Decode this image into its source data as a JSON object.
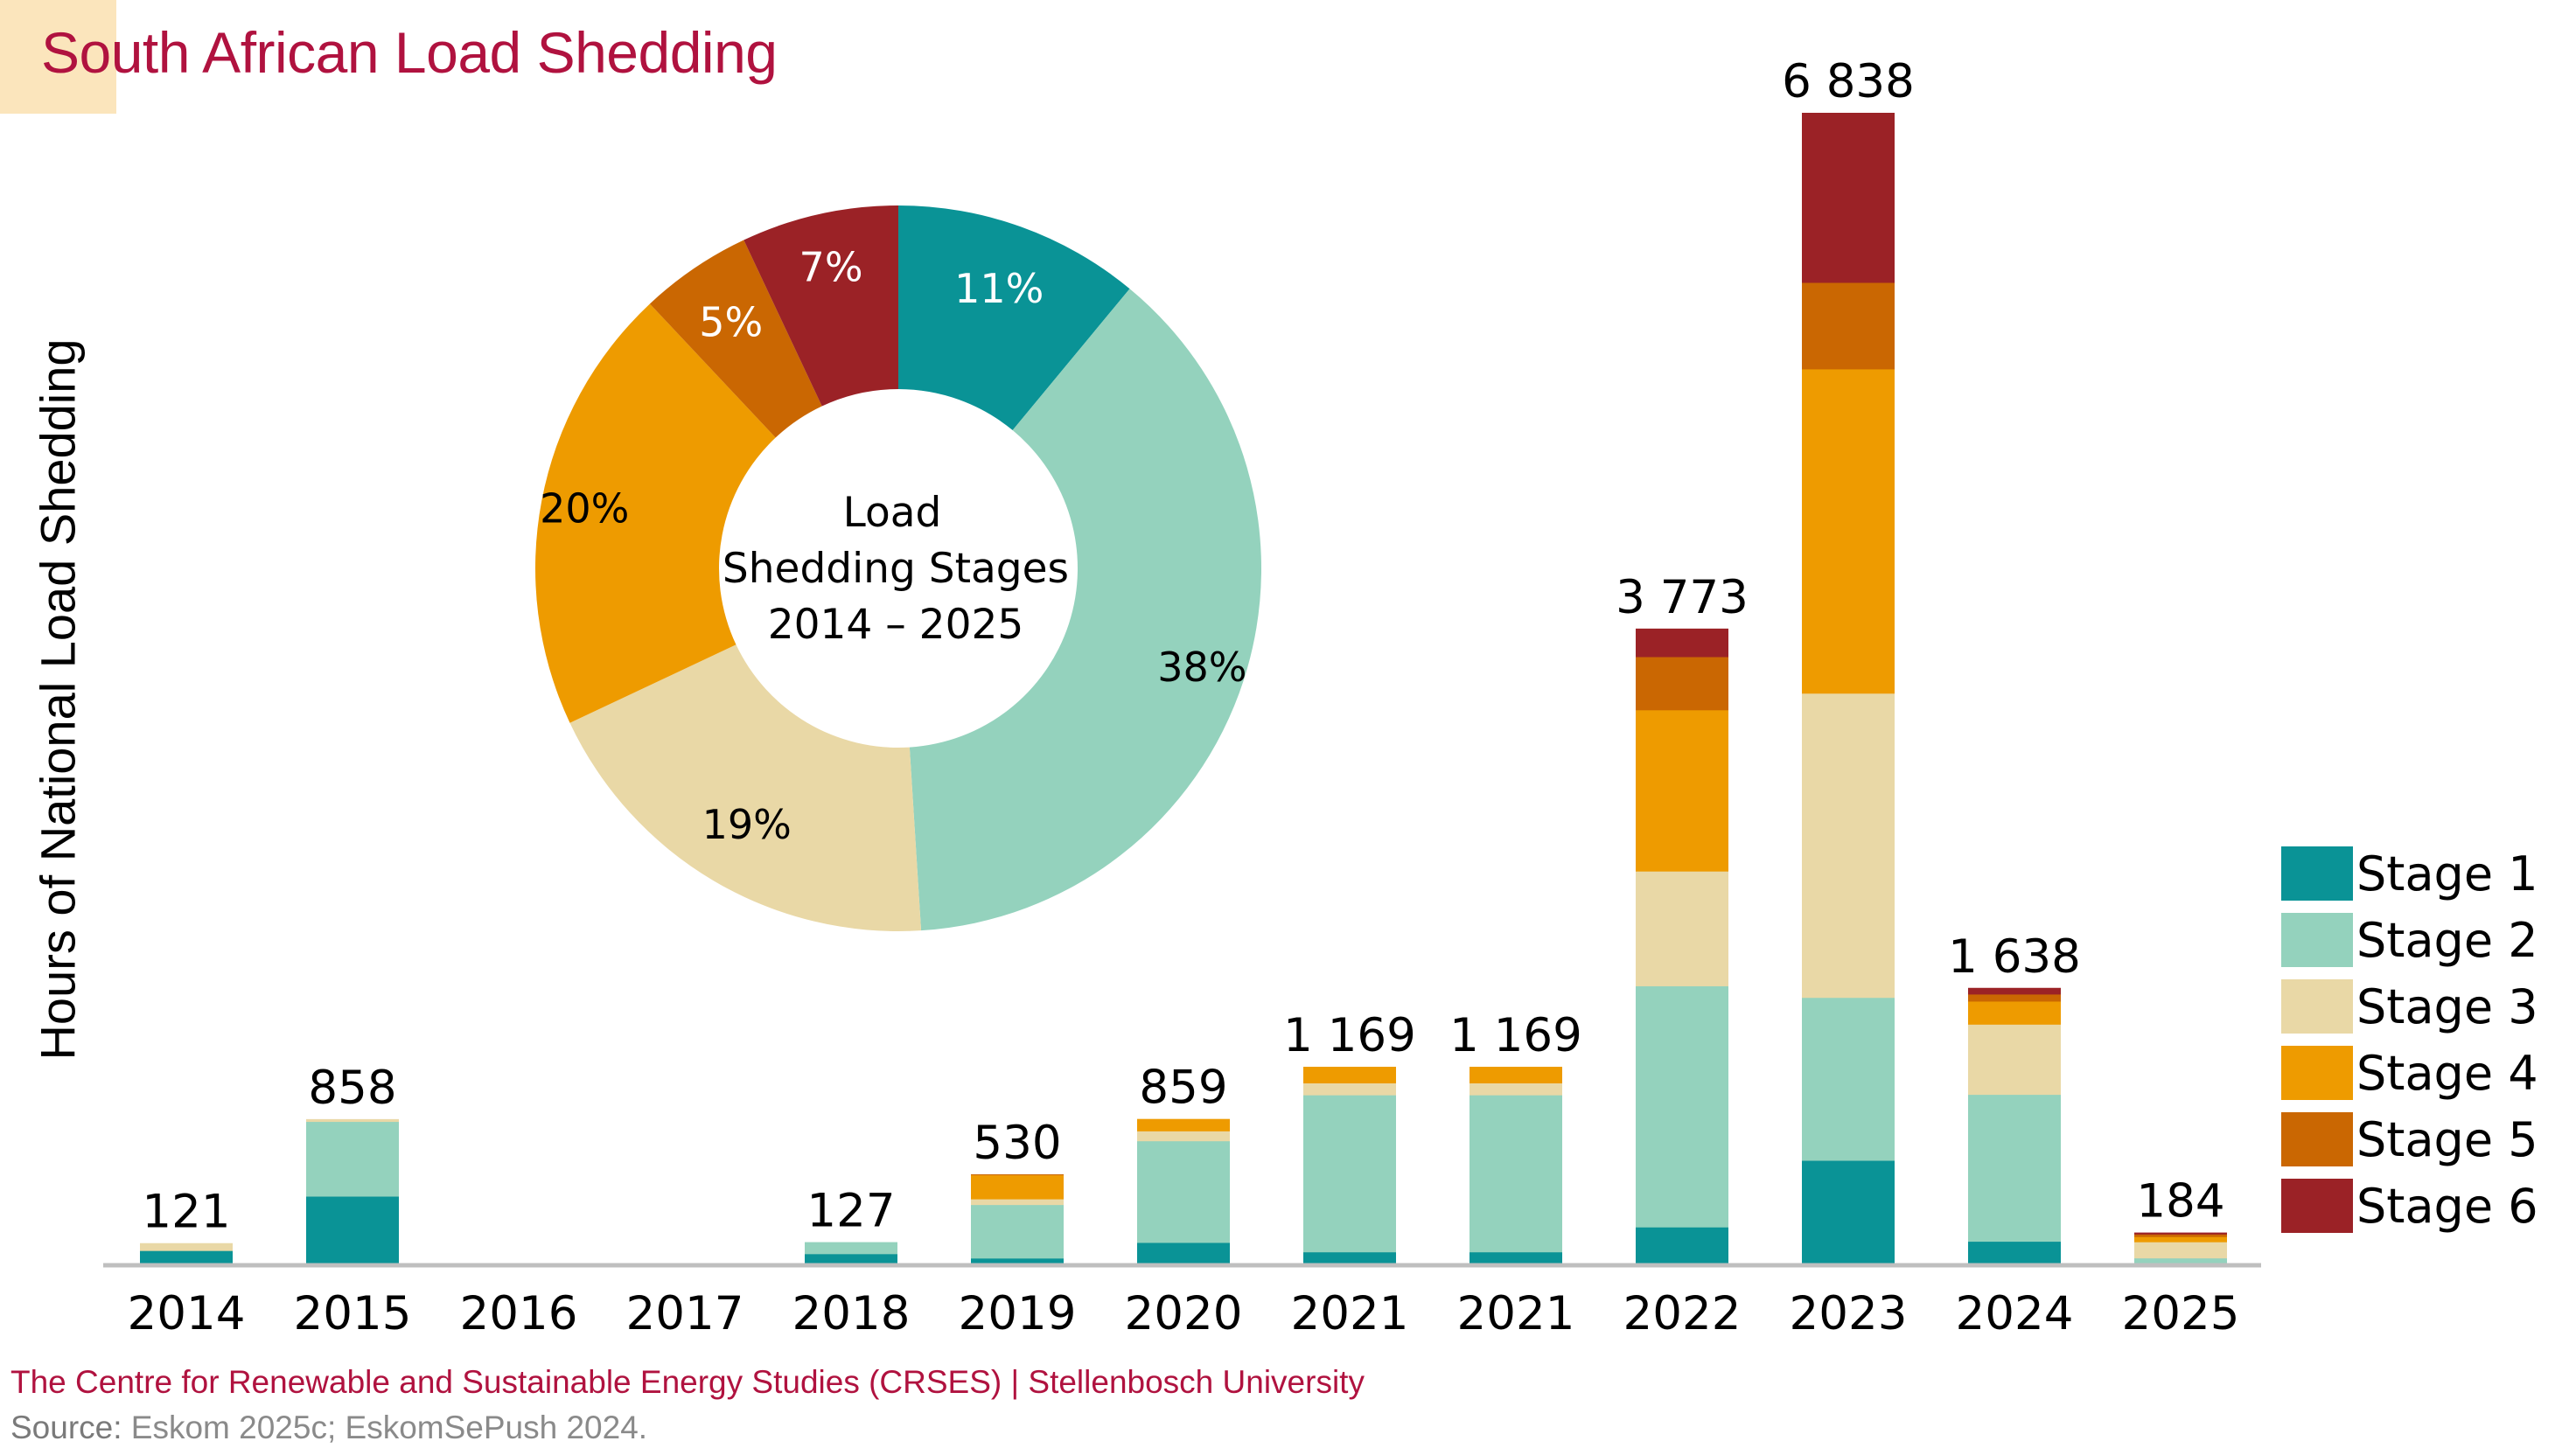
{
  "title": "South African Load Shedding",
  "footer": {
    "organisation": "The Centre for Renewable and Sustainable Energy Studies (CRSES) | Stellenbosch University",
    "source_label": "Source:",
    "source_text": " Eskom 2025c; EskomSePush 2024."
  },
  "colors": {
    "Stage 1": "#0A9396",
    "Stage 2": "#94D2BD",
    "Stage 3": "#E9D8A6",
    "Stage 4": "#EE9B00",
    "Stage 5": "#CA6702",
    "Stage 6": "#9B2226",
    "title": "#B0123F",
    "axis": "#BFBFBF"
  },
  "chart_data": [
    {
      "type": "bar",
      "stacked": true,
      "title": "South African Load Shedding",
      "xlabel": "",
      "ylabel": "Hours of National Load Shedding",
      "ylim": [
        0,
        6838
      ],
      "grid": false,
      "legend_position": "right",
      "categories": [
        "2014",
        "2015",
        "2016",
        "2017",
        "2018",
        "2019",
        "2020",
        "2021",
        "2021",
        "2022",
        "2023",
        "2024",
        "2025"
      ],
      "totals": [
        121,
        858,
        0,
        0,
        127,
        530,
        859,
        1169,
        1169,
        3773,
        6838,
        1638,
        184
      ],
      "total_labels": [
        "121",
        "858",
        "",
        "",
        "127",
        "530",
        "859",
        "1 169",
        "1 169",
        "3 773",
        "6 838",
        "1 638",
        "184"
      ],
      "series": [
        {
          "name": "Stage 1",
          "values": [
            77,
            400,
            0,
            0,
            58,
            32,
            125,
            69,
            69,
            217,
            613,
            132,
            0
          ]
        },
        {
          "name": "Stage 2",
          "values": [
            0,
            444,
            0,
            0,
            69,
            318,
            604,
            933,
            933,
            1433,
            968,
            873,
            33
          ]
        },
        {
          "name": "Stage 3",
          "values": [
            44,
            14,
            0,
            0,
            0,
            34,
            59,
            71,
            71,
            682,
            1808,
            417,
            96
          ]
        },
        {
          "name": "Stage 4",
          "values": [
            0,
            0,
            0,
            0,
            0,
            143,
            71,
            96,
            96,
            958,
            1927,
            137,
            31
          ]
        },
        {
          "name": "Stage 5",
          "values": [
            0,
            0,
            0,
            0,
            0,
            3,
            0,
            0,
            0,
            316,
            514,
            42,
            15
          ]
        },
        {
          "name": "Stage 6",
          "values": [
            0,
            0,
            0,
            0,
            0,
            0,
            0,
            0,
            0,
            167,
            1008,
            37,
            9
          ]
        }
      ]
    },
    {
      "type": "pie",
      "donut": true,
      "title": "Load Shedding Stages 2014 – 2025",
      "center_label": [
        "Load",
        "Shedding Stages",
        "2014 – 2025"
      ],
      "categories": [
        "Stage 1",
        "Stage 2",
        "Stage 3",
        "Stage 4",
        "Stage 5",
        "Stage 6"
      ],
      "values": [
        11,
        38,
        19,
        20,
        5,
        7
      ],
      "labels": [
        "11%",
        "38%",
        "19%",
        "20%",
        "5%",
        "7%"
      ]
    }
  ],
  "legend": {
    "items": [
      "Stage 1",
      "Stage 2",
      "Stage 3",
      "Stage 4",
      "Stage 5",
      "Stage 6"
    ]
  }
}
